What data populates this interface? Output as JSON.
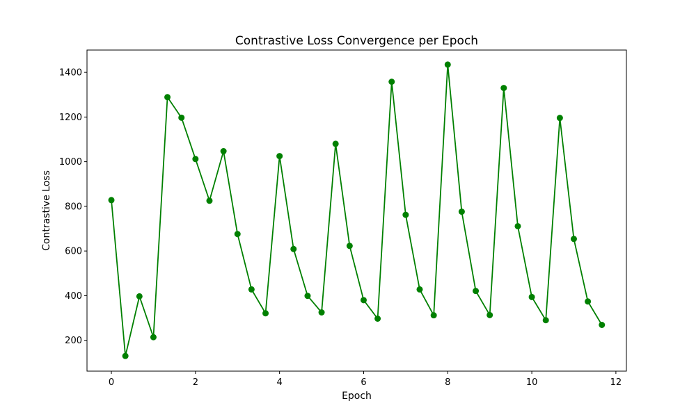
{
  "chart_data": {
    "type": "line",
    "title": "Contrastive Loss Convergence per Epoch",
    "xlabel": "Epoch",
    "ylabel": "Contrastive Loss",
    "xlim": [
      -0.58,
      12.25
    ],
    "ylim": [
      62,
      1500
    ],
    "x_ticks": [
      0,
      2,
      4,
      6,
      8,
      10,
      12
    ],
    "y_ticks": [
      200,
      400,
      600,
      800,
      1000,
      1200,
      1400
    ],
    "grid": false,
    "legend": "none",
    "series": [
      {
        "color": "#008000",
        "marker": "circle",
        "x": [
          0,
          0.333,
          0.667,
          1,
          1.333,
          1.667,
          2,
          2.333,
          2.667,
          3,
          3.333,
          3.667,
          4,
          4.333,
          4.667,
          5,
          5.333,
          5.667,
          6,
          6.333,
          6.667,
          7,
          7.333,
          7.667,
          8,
          8.333,
          8.667,
          9,
          9.333,
          9.667,
          10,
          10.333,
          10.667,
          11,
          11.333,
          11.667
        ],
        "values": [
          828,
          130,
          397,
          214,
          1289,
          1197,
          1012,
          825,
          1047,
          676,
          428,
          321,
          1025,
          609,
          399,
          325,
          1080,
          623,
          380,
          297,
          1358,
          762,
          428,
          312,
          1435,
          776,
          421,
          313,
          1330,
          711,
          394,
          290,
          1196,
          654,
          374,
          269
        ]
      }
    ]
  }
}
